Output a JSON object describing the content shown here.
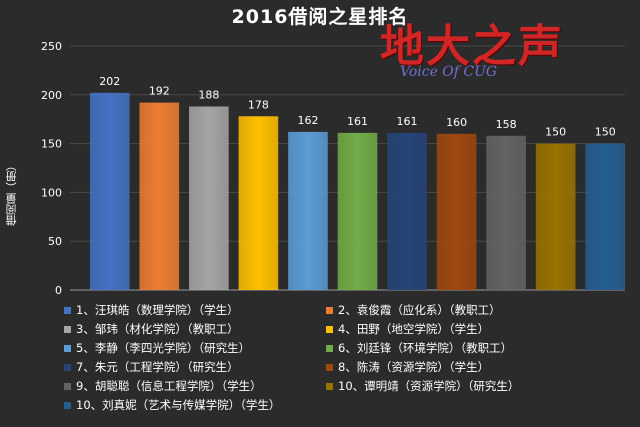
{
  "chart_data": {
    "type": "bar",
    "title": "2016借阅之星排名",
    "ylabel": "借阅量（册）",
    "ylim": [
      0,
      250
    ],
    "yticks": [
      0,
      50,
      100,
      150,
      200,
      250
    ],
    "grid": true,
    "legend_position": "bottom",
    "series": [
      {
        "name": "1、汪琪皓（数理学院）（学生）",
        "value": 202,
        "color": "#4472c4"
      },
      {
        "name": "2、袁俊霞（应化系）（教职工）",
        "value": 192,
        "color": "#ed7d31"
      },
      {
        "name": "3、邹玮（材化学院）（教职工）",
        "value": 188,
        "color": "#a5a5a5"
      },
      {
        "name": "4、田野（地空学院）（学生）",
        "value": 178,
        "color": "#ffc000"
      },
      {
        "name": "5、李静（李四光学院）（研究生）",
        "value": 162,
        "color": "#5b9bd5"
      },
      {
        "name": "6、刘廷锋（环境学院）（教职工）",
        "value": 161,
        "color": "#70ad47"
      },
      {
        "name": "7、朱元（工程学院）（研究生）",
        "value": 161,
        "color": "#264478"
      },
      {
        "name": "8、陈涛（资源学院）（学生）",
        "value": 160,
        "color": "#9e480e"
      },
      {
        "name": "9、胡聪聪（信息工程学院）（学生）",
        "value": 158,
        "color": "#636363"
      },
      {
        "name": "10、谭明靖（资源学院）（研究生）",
        "value": 150,
        "color": "#997300"
      },
      {
        "name": "10、刘真妮（艺术与传媒学院）（学生）",
        "value": 150,
        "color": "#255e91"
      }
    ]
  },
  "logo": {
    "text": "地大之声",
    "subtitle": "Voice Of CUG"
  }
}
